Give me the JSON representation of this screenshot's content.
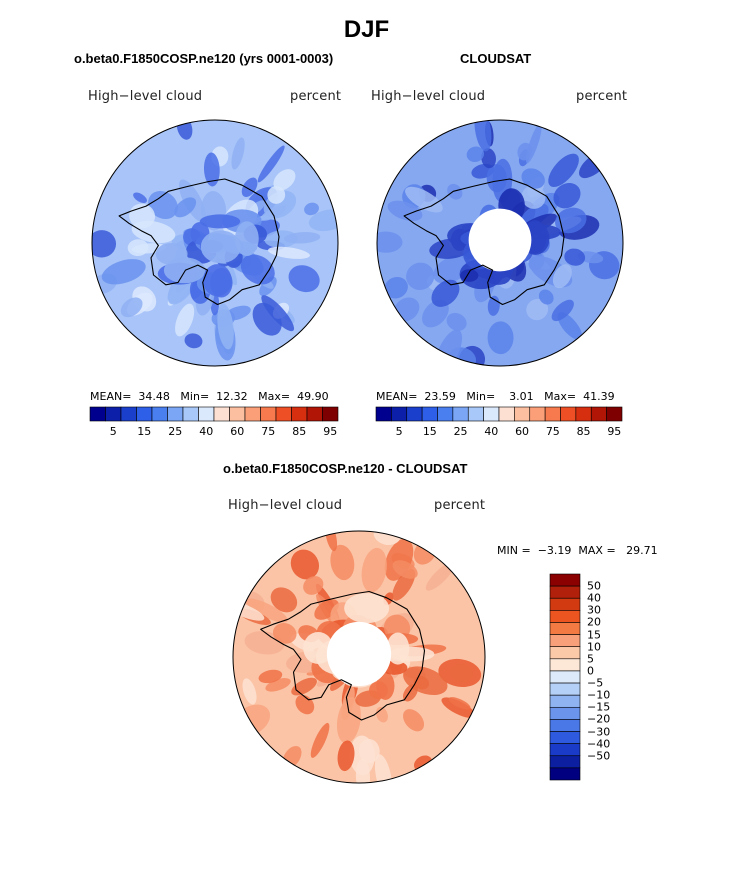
{
  "title": "DJF",
  "panels": [
    {
      "subtitle": "o.beta0.F1850COSP.ne120 (yrs 0001-0003)",
      "left_label": "High−level cloud",
      "right_label": "percent",
      "stats": {
        "mean_label": "MEAN=",
        "mean": "34.48",
        "min_label": "Min=",
        "min": "12.32",
        "max_label": "Max=",
        "max": "49.90"
      }
    },
    {
      "subtitle": "CLOUDSAT",
      "left_label": "High−level cloud",
      "right_label": "percent",
      "stats": {
        "mean_label": "MEAN=",
        "mean": "23.59",
        "min_label": "Min=",
        "min": "3.01",
        "max_label": "Max=",
        "max": "41.39"
      }
    }
  ],
  "abs_colorbar": {
    "colors": [
      "#00008f",
      "#0c1fa8",
      "#1a3fcc",
      "#2d5fe8",
      "#4a7ff0",
      "#7aa6f5",
      "#a8c8fa",
      "#dbe9fd",
      "#fde0d2",
      "#fcbfa0",
      "#fa9f78",
      "#f77a4e",
      "#ee4f24",
      "#d62f10",
      "#b01505",
      "#7f0000"
    ],
    "ticks": [
      "5",
      "15",
      "25",
      "40",
      "60",
      "75",
      "85",
      "95"
    ]
  },
  "diff_panel": {
    "subtitle": "o.beta0.F1850COSP.ne120 - CLOUDSAT",
    "left_label": "High−level cloud",
    "right_label": "percent",
    "minmax": {
      "min_label": "MIN =",
      "min": "−3.19",
      "max_label": "MAX =",
      "max": "29.71"
    }
  },
  "diff_colorbar": {
    "colors": [
      "#8b0000",
      "#b0200a",
      "#d23a12",
      "#ec5420",
      "#f47a44",
      "#f8a07a",
      "#fbc8a8",
      "#fde8d8",
      "#dceafa",
      "#b5d0f6",
      "#8fb3f1",
      "#6b95ec",
      "#4a78e6",
      "#2e5ae0",
      "#1a3bc8",
      "#0c1fa0",
      "#000080"
    ],
    "labels": [
      "50",
      "40",
      "30",
      "20",
      "15",
      "10",
      "5",
      "0",
      "−5",
      "−10",
      "−15",
      "−20",
      "−30",
      "−40",
      "−50"
    ]
  },
  "maps": {
    "panel1": {
      "base": "#a8c4f8",
      "patches": [
        "#d6e6fd",
        "#8fb0f3",
        "#6a92ee",
        "#4a6ee6",
        "#3a5ad8",
        "#dde9fe",
        "#93b5f5"
      ]
    },
    "panel2": {
      "base": "#86a8f1",
      "patches": [
        "#6c90ec",
        "#4a6fe3",
        "#3758d6",
        "#2a44c4",
        "#1c2fb0",
        "#a0bcf4",
        "#5a82ea"
      ]
    },
    "diff": {
      "base": "#fbc4a6",
      "patches": [
        "#f8a57f",
        "#f48c64",
        "#f07248",
        "#e9582e",
        "#fde3d3",
        "#f6b093",
        "#ea6a3e"
      ]
    }
  }
}
